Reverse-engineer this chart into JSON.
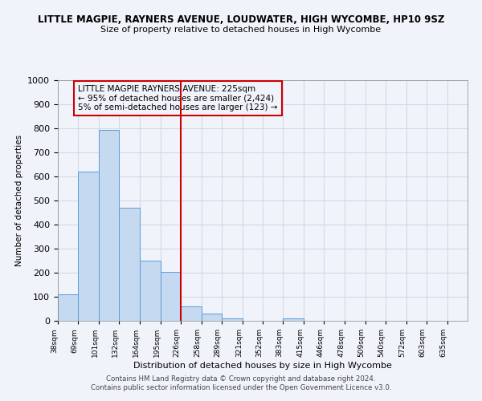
{
  "title": "LITTLE MAGPIE, RAYNERS AVENUE, LOUDWATER, HIGH WYCOMBE, HP10 9SZ",
  "subtitle": "Size of property relative to detached houses in High Wycombe",
  "xlabel": "Distribution of detached houses by size in High Wycombe",
  "ylabel": "Number of detached properties",
  "footer1": "Contains HM Land Registry data © Crown copyright and database right 2024.",
  "footer2": "Contains public sector information licensed under the Open Government Licence v3.0.",
  "annotation_line1": "LITTLE MAGPIE RAYNERS AVENUE: 225sqm",
  "annotation_line2": "← 95% of detached houses are smaller (2,424)",
  "annotation_line3": "5% of semi-detached houses are larger (123) →",
  "vline_x": 226,
  "bar_edges": [
    38,
    69,
    101,
    132,
    164,
    195,
    226,
    258,
    289,
    321,
    352,
    383,
    415,
    446,
    478,
    509,
    540,
    572,
    603,
    635,
    666
  ],
  "bar_heights": [
    110,
    620,
    795,
    470,
    250,
    205,
    60,
    30,
    10,
    0,
    0,
    10,
    0,
    0,
    0,
    0,
    0,
    0,
    0,
    0
  ],
  "bar_color": "#c5d9f0",
  "bar_edge_color": "#5b9bd5",
  "grid_color": "#d0d8e8",
  "vline_color": "#cc0000",
  "annotation_box_edge_color": "#cc0000",
  "ylim": [
    0,
    1000
  ],
  "yticks": [
    0,
    100,
    200,
    300,
    400,
    500,
    600,
    700,
    800,
    900,
    1000
  ],
  "bg_color": "#f0f4fa"
}
